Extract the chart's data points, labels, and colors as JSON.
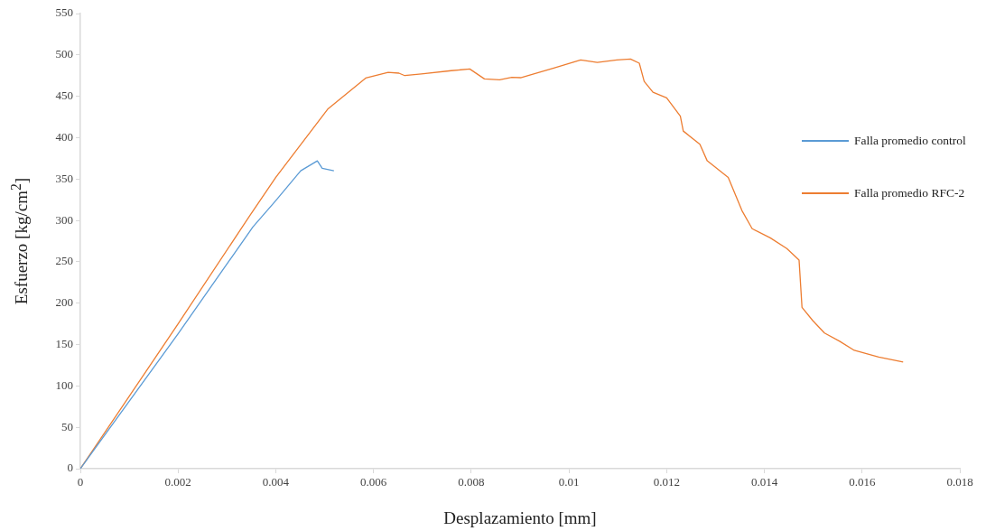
{
  "chart_data": {
    "type": "line",
    "xlabel": "Desplazamiento  [mm]",
    "ylabel": "Esfuerzo  [kg/cm$^{2}$]",
    "xlim": [
      0,
      0.018
    ],
    "xticks": [
      0,
      0.002,
      0.004,
      0.006,
      0.008,
      0.01,
      0.012,
      0.014,
      0.016,
      0.018
    ],
    "ylim": [
      0,
      550
    ],
    "yticks": [
      0,
      50,
      100,
      150,
      200,
      250,
      300,
      350,
      400,
      450,
      500,
      550
    ],
    "grid": false,
    "legend": "right",
    "marker": "none",
    "line_style": "solid",
    "series": [
      {
        "name": "Falla promedio control",
        "color": "#5b9bd5",
        "x": [
          0,
          0.002,
          0.00353,
          0.004,
          0.00451,
          0.00485,
          0.00495,
          0.00519
        ],
        "values": [
          0,
          163,
          292,
          324,
          360,
          372,
          363,
          360
        ]
      },
      {
        "name": "Falla promedio RFC-2",
        "color": "#ed7d31",
        "x": [
          0,
          0.002,
          0.00347,
          0.004,
          0.00507,
          0.00584,
          0.0063,
          0.00652,
          0.00664,
          0.00698,
          0.00759,
          0.00797,
          0.00827,
          0.00858,
          0.00883,
          0.00901,
          0.00969,
          0.01024,
          0.01058,
          0.01098,
          0.01126,
          0.01144,
          0.01154,
          0.01172,
          0.012,
          0.01228,
          0.01234,
          0.01268,
          0.01283,
          0.01326,
          0.01354,
          0.01375,
          0.01412,
          0.01446,
          0.01471,
          0.01477,
          0.01499,
          0.01523,
          0.01554,
          0.01584,
          0.01634,
          0.01684
        ],
        "values": [
          0,
          175,
          306,
          352,
          435,
          472,
          479,
          478,
          475,
          477,
          481,
          483,
          471,
          470,
          473,
          472.5,
          484,
          494,
          491,
          494,
          495,
          490,
          468,
          455,
          448,
          426,
          408,
          392,
          372,
          352,
          312,
          290,
          279,
          266,
          252,
          195,
          179,
          164,
          154,
          143,
          135,
          129
        ]
      }
    ]
  }
}
